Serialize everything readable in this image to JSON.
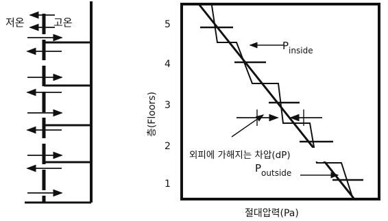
{
  "left_diagram": {
    "cold_label": "저온",
    "hot_label": "고온"
  },
  "right_chart": {
    "y_axis_label": "층(Floors)",
    "x_axis_label": "절대압력(Pa)",
    "floor_ticks": [
      "1",
      "2",
      "3",
      "4",
      "5"
    ],
    "p_inside_main": "P",
    "p_inside_sub": "inside",
    "p_outside_main": "P",
    "p_outside_sub": "outside",
    "dp_label": "외피에 가해지는 차압(dP)"
  }
}
